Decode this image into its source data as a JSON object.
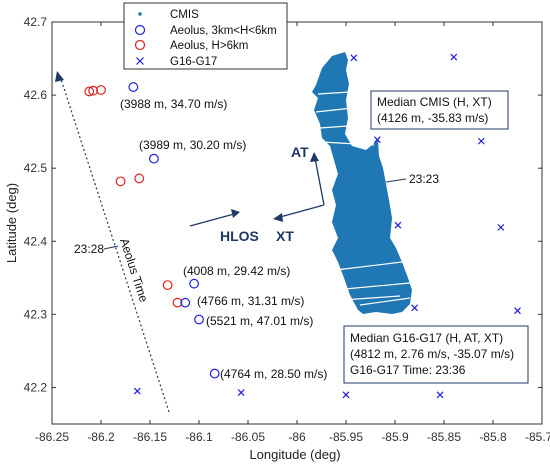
{
  "chart_data": {
    "type": "scatter",
    "xlabel": "Longitude (deg)",
    "ylabel": "Latitude (deg)",
    "xlim": [
      -86.25,
      -85.75
    ],
    "ylim": [
      42.15,
      42.7
    ],
    "x_ticks": [
      "-86.25",
      "-86.2",
      "-86.15",
      "-86.1",
      "-86.05",
      "-86",
      "-85.95",
      "-85.9",
      "-85.85",
      "-85.8",
      "-85.75"
    ],
    "y_ticks": [
      "42.2",
      "42.3",
      "42.4",
      "42.5",
      "42.6",
      "42.7"
    ],
    "legend": {
      "placement": "top-center",
      "entries": [
        {
          "label": "CMIS",
          "marker": "dot",
          "color": "#1f77b4"
        },
        {
          "label": "Aeolus, 3km<H<6km",
          "marker": "circle",
          "color": "#1f1fe0"
        },
        {
          "label": "Aeolus, H>6km",
          "marker": "circle",
          "color": "#e02020"
        },
        {
          "label": "G16-G17",
          "marker": "x",
          "color": "#1f1fe0"
        }
      ]
    },
    "series": [
      {
        "name": "Aeolus, H>6km",
        "color": "#e02020",
        "points": [
          {
            "x": -86.212,
            "y": 42.605
          },
          {
            "x": -86.208,
            "y": 42.606
          },
          {
            "x": -86.2,
            "y": 42.607
          },
          {
            "x": -86.18,
            "y": 42.482
          },
          {
            "x": -86.161,
            "y": 42.486
          },
          {
            "x": -86.132,
            "y": 42.34
          },
          {
            "x": -86.122,
            "y": 42.316
          }
        ]
      },
      {
        "name": "Aeolus, 3km<H<6km",
        "color": "#1f1fe0",
        "points": [
          {
            "x": -86.167,
            "y": 42.611
          },
          {
            "x": -86.146,
            "y": 42.513
          },
          {
            "x": -86.105,
            "y": 42.342
          },
          {
            "x": -86.114,
            "y": 42.316
          },
          {
            "x": -86.1,
            "y": 42.293
          },
          {
            "x": -86.084,
            "y": 42.219
          }
        ]
      },
      {
        "name": "G16-G17",
        "color": "#1f1fe0",
        "points": [
          {
            "x": -85.942,
            "y": 42.651
          },
          {
            "x": -85.84,
            "y": 42.652
          },
          {
            "x": -85.918,
            "y": 42.539
          },
          {
            "x": -85.812,
            "y": 42.537
          },
          {
            "x": -85.897,
            "y": 42.422
          },
          {
            "x": -85.792,
            "y": 42.419
          },
          {
            "x": -85.88,
            "y": 42.309
          },
          {
            "x": -85.775,
            "y": 42.305
          },
          {
            "x": -86.163,
            "y": 42.195
          },
          {
            "x": -86.057,
            "y": 42.193
          },
          {
            "x": -85.95,
            "y": 42.19
          },
          {
            "x": -85.854,
            "y": 42.19
          }
        ]
      }
    ],
    "cmis_color": "#1f77b4",
    "annotations": {
      "a1": "(3988 m, 34.70 m/s)",
      "a2": "(3989 m, 30.20 m/s)",
      "a3": "(4008 m, 29.42 m/s)",
      "a4": "(4766 m, 31.31 m/s)",
      "a5": "(5521 m, 47.01 m/s)",
      "a6": "(4764 m, 28.50 m/s)",
      "time_cmis": "23:23",
      "time_aeolus": "23:28",
      "aeolus_time_label": "Aeolus Time",
      "at_label": "AT",
      "hlos_label": "HLOS",
      "xt_label": "XT"
    },
    "box_cmis": {
      "line1": "Median CMIS (H, XT)",
      "line2": "(4126 m, -35.83 m/s)"
    },
    "box_goes": {
      "line1": "Median G16-G17 (H, AT, XT)",
      "line2": "(4812 m, 2.76 m/s, -35.07 m/s)",
      "line3": "G16-G17 Time: 23:36"
    }
  }
}
